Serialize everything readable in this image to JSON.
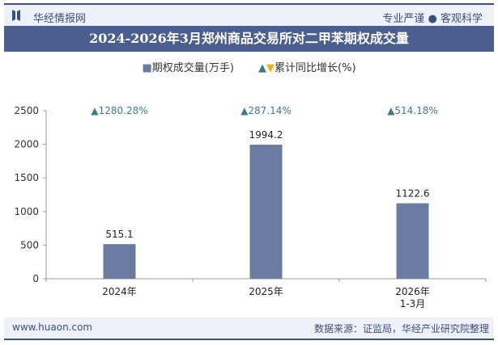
{
  "header": {
    "brand": "华经情报网",
    "slogan": "专业严谨 ● 客观科学"
  },
  "title": "2024-2026年3月郑州商品交易所对二甲苯期权成交量",
  "legend": {
    "bar": "期权成交量(万手)",
    "line": "累计同比增长(%)"
  },
  "footer": {
    "url": "www.huaon.com",
    "source": "数据来源：证监局，华经产业研究院整理"
  },
  "colors": {
    "bar": "#6b7ca3",
    "growth_text": "#3d7a8c",
    "title_bg": "#4a5f8f"
  },
  "chart_data": {
    "type": "bar",
    "categories": [
      "2024年",
      "2025年",
      "2026年\n1-3月"
    ],
    "series": [
      {
        "name": "期权成交量(万手)",
        "values": [
          515.1,
          1994.2,
          1122.6
        ]
      },
      {
        "name": "累计同比增长(%)",
        "values": [
          1280.28,
          287.14,
          514.18
        ],
        "labels": [
          "▲1280.28%",
          "▲287.14%",
          "▲514.18%"
        ]
      }
    ],
    "ylim": [
      0,
      2500
    ],
    "yticks": [
      0,
      500,
      1000,
      1500,
      2000,
      2500
    ],
    "value_labels": [
      "515.1",
      "1994.2",
      "1122.6"
    ],
    "grid": false,
    "legend_position": "top"
  }
}
